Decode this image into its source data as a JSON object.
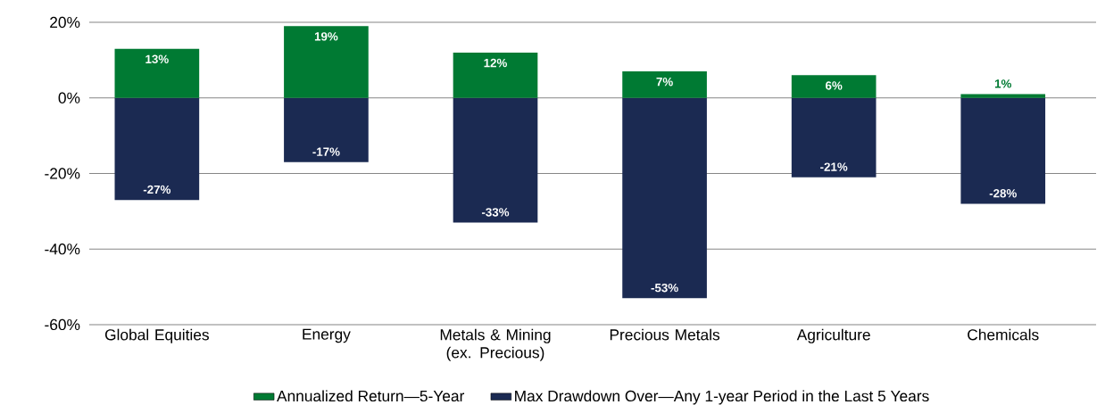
{
  "chart_data": {
    "type": "bar",
    "categories": [
      "Global Equities",
      "Energy",
      "Metals & Mining (ex. Precious)",
      "Precious Metals",
      "Agriculture",
      "Chemicals"
    ],
    "series": [
      {
        "name": "Annualized Return—5-Year",
        "color": "#007a33",
        "values": [
          13,
          19,
          12,
          7,
          6,
          1
        ],
        "value_labels": [
          "13%",
          "19%",
          "12%",
          "7%",
          "6%",
          "1%"
        ]
      },
      {
        "name": "Max Drawdown Over—Any 1-year Period in the Last 5 Years",
        "color": "#1b2a52",
        "values": [
          -27,
          -17,
          -33,
          -53,
          -21,
          -28
        ],
        "value_labels": [
          "-27%",
          "-17%",
          "-33%",
          "-53%",
          "-21%",
          "-28%"
        ]
      }
    ],
    "ylim": [
      -60,
      20
    ],
    "yticks": [
      {
        "value": -60,
        "label": "-60%"
      },
      {
        "value": -40,
        "label": "-40%"
      },
      {
        "value": -20,
        "label": "-20%"
      },
      {
        "value": 0,
        "label": "0%"
      },
      {
        "value": 20,
        "label": "20%"
      }
    ],
    "grid": "y",
    "stacked": true,
    "legend": "bottom"
  }
}
